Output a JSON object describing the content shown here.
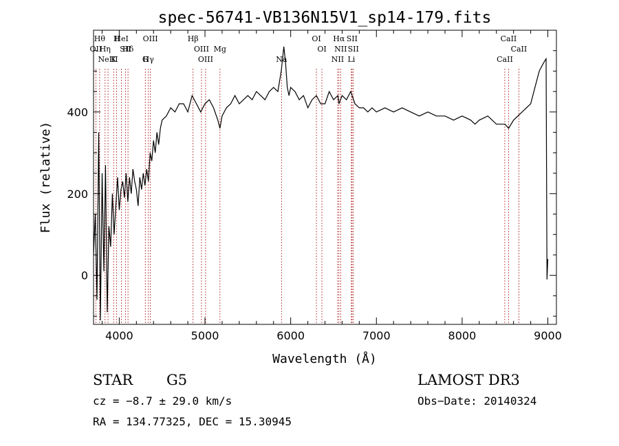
{
  "chart_data": {
    "type": "line",
    "title": "spec-56741-VB136N15V1_sp14-179.fits",
    "xlabel": "Wavelength (Å)",
    "ylabel": "Flux (relative)",
    "xlim": [
      3700,
      9100
    ],
    "ylim": [
      -120,
      600
    ],
    "xticks": [
      4000,
      5000,
      6000,
      7000,
      8000,
      9000
    ],
    "yticks": [
      0,
      200,
      400
    ],
    "grid": false,
    "series": [
      {
        "x": [
          3700,
          3720,
          3740,
          3760,
          3780,
          3800,
          3820,
          3840,
          3860,
          3880,
          3900,
          3920,
          3940,
          3960,
          3980,
          4000,
          4020,
          4040,
          4060,
          4080,
          4100,
          4120,
          4140,
          4160,
          4180,
          4200,
          4220,
          4240,
          4260,
          4280,
          4300,
          4320,
          4340,
          4360,
          4380,
          4400,
          4420,
          4440,
          4460,
          4480,
          4500,
          4550,
          4600,
          4650,
          4700,
          4750,
          4800,
          4850,
          4900,
          4950,
          5000,
          5050,
          5100,
          5150,
          5175,
          5200,
          5250,
          5300,
          5350,
          5400,
          5450,
          5500,
          5550,
          5600,
          5650,
          5700,
          5750,
          5800,
          5850,
          5890,
          5920,
          5940,
          5960,
          5980,
          6000,
          6050,
          6100,
          6150,
          6200,
          6250,
          6300,
          6350,
          6400,
          6450,
          6500,
          6550,
          6563,
          6600,
          6650,
          6700,
          6750,
          6800,
          6850,
          6900,
          6950,
          7000,
          7100,
          7200,
          7300,
          7400,
          7500,
          7600,
          7700,
          7800,
          7900,
          8000,
          8100,
          8150,
          8200,
          8300,
          8400,
          8450,
          8500,
          8542,
          8600,
          8700,
          8800,
          8850,
          8900,
          8950,
          8980,
          8990,
          9000
        ],
        "y": [
          50,
          150,
          -60,
          350,
          -110,
          250,
          10,
          270,
          -90,
          120,
          70,
          200,
          100,
          170,
          240,
          160,
          210,
          230,
          190,
          250,
          180,
          240,
          200,
          260,
          230,
          210,
          170,
          240,
          210,
          250,
          220,
          260,
          230,
          300,
          280,
          330,
          300,
          350,
          320,
          360,
          380,
          390,
          410,
          400,
          420,
          420,
          400,
          440,
          420,
          400,
          420,
          430,
          410,
          380,
          360,
          390,
          410,
          420,
          440,
          420,
          430,
          440,
          430,
          450,
          440,
          430,
          450,
          460,
          450,
          500,
          560,
          520,
          460,
          440,
          460,
          450,
          430,
          440,
          410,
          430,
          440,
          420,
          420,
          450,
          430,
          440,
          420,
          440,
          430,
          450,
          420,
          410,
          410,
          400,
          410,
          400,
          410,
          400,
          410,
          400,
          390,
          400,
          390,
          390,
          380,
          390,
          380,
          370,
          380,
          390,
          370,
          370,
          370,
          360,
          380,
          400,
          420,
          460,
          500,
          520,
          530,
          -10,
          40
        ]
      }
    ],
    "lines_top": [
      {
        "x": 3771,
        "label": "Hθ"
      },
      {
        "x": 3835,
        "label": "Hη"
      },
      {
        "x": 3934,
        "label": "K"
      },
      {
        "x": 3970,
        "label": "H"
      },
      {
        "x": 4102,
        "label": "Hδ"
      },
      {
        "x": 4340,
        "label": "Hγ"
      },
      {
        "x": 4861,
        "label": "Hβ"
      },
      {
        "x": 5175,
        "label": "Mg"
      },
      {
        "x": 5893,
        "label": "Na"
      },
      {
        "x": 6563,
        "label": "Hα"
      },
      {
        "x": 6583,
        "label": "NII"
      },
      {
        "x": 6708,
        "label": "Li"
      },
      {
        "x": 8542,
        "label": "CaII"
      },
      {
        "x": 8662,
        "label": "CaII"
      }
    ],
    "lines_other": [
      {
        "x": 3727,
        "label": "OII"
      },
      {
        "x": 3869,
        "label": "NeIII"
      },
      {
        "x": 4026,
        "label": "HeI"
      },
      {
        "x": 4072,
        "label": "SII"
      },
      {
        "x": 4304,
        "label": "G"
      },
      {
        "x": 4363,
        "label": "OIII"
      },
      {
        "x": 4959,
        "label": "OIII"
      },
      {
        "x": 5007,
        "label": "OIII"
      },
      {
        "x": 6300,
        "label": "OI"
      },
      {
        "x": 6364,
        "label": "OI"
      },
      {
        "x": 6548,
        "label": "NII"
      },
      {
        "x": 6716,
        "label": "SII"
      },
      {
        "x": 6731,
        "label": "SII"
      },
      {
        "x": 8498,
        "label": "CaII"
      }
    ]
  },
  "footer": {
    "class_label": "STAR",
    "subclass_label": "G5",
    "survey": "LAMOST DR3",
    "cz": "cz = −8.7 ± 29.0 km/s",
    "obs_date": "Obs−Date: 20140324",
    "coords": "RA = 134.77325, DEC =  15.30945"
  },
  "colors": {
    "spectrum": "#000000",
    "line_markers": "#b22222",
    "axes": "#000000"
  }
}
